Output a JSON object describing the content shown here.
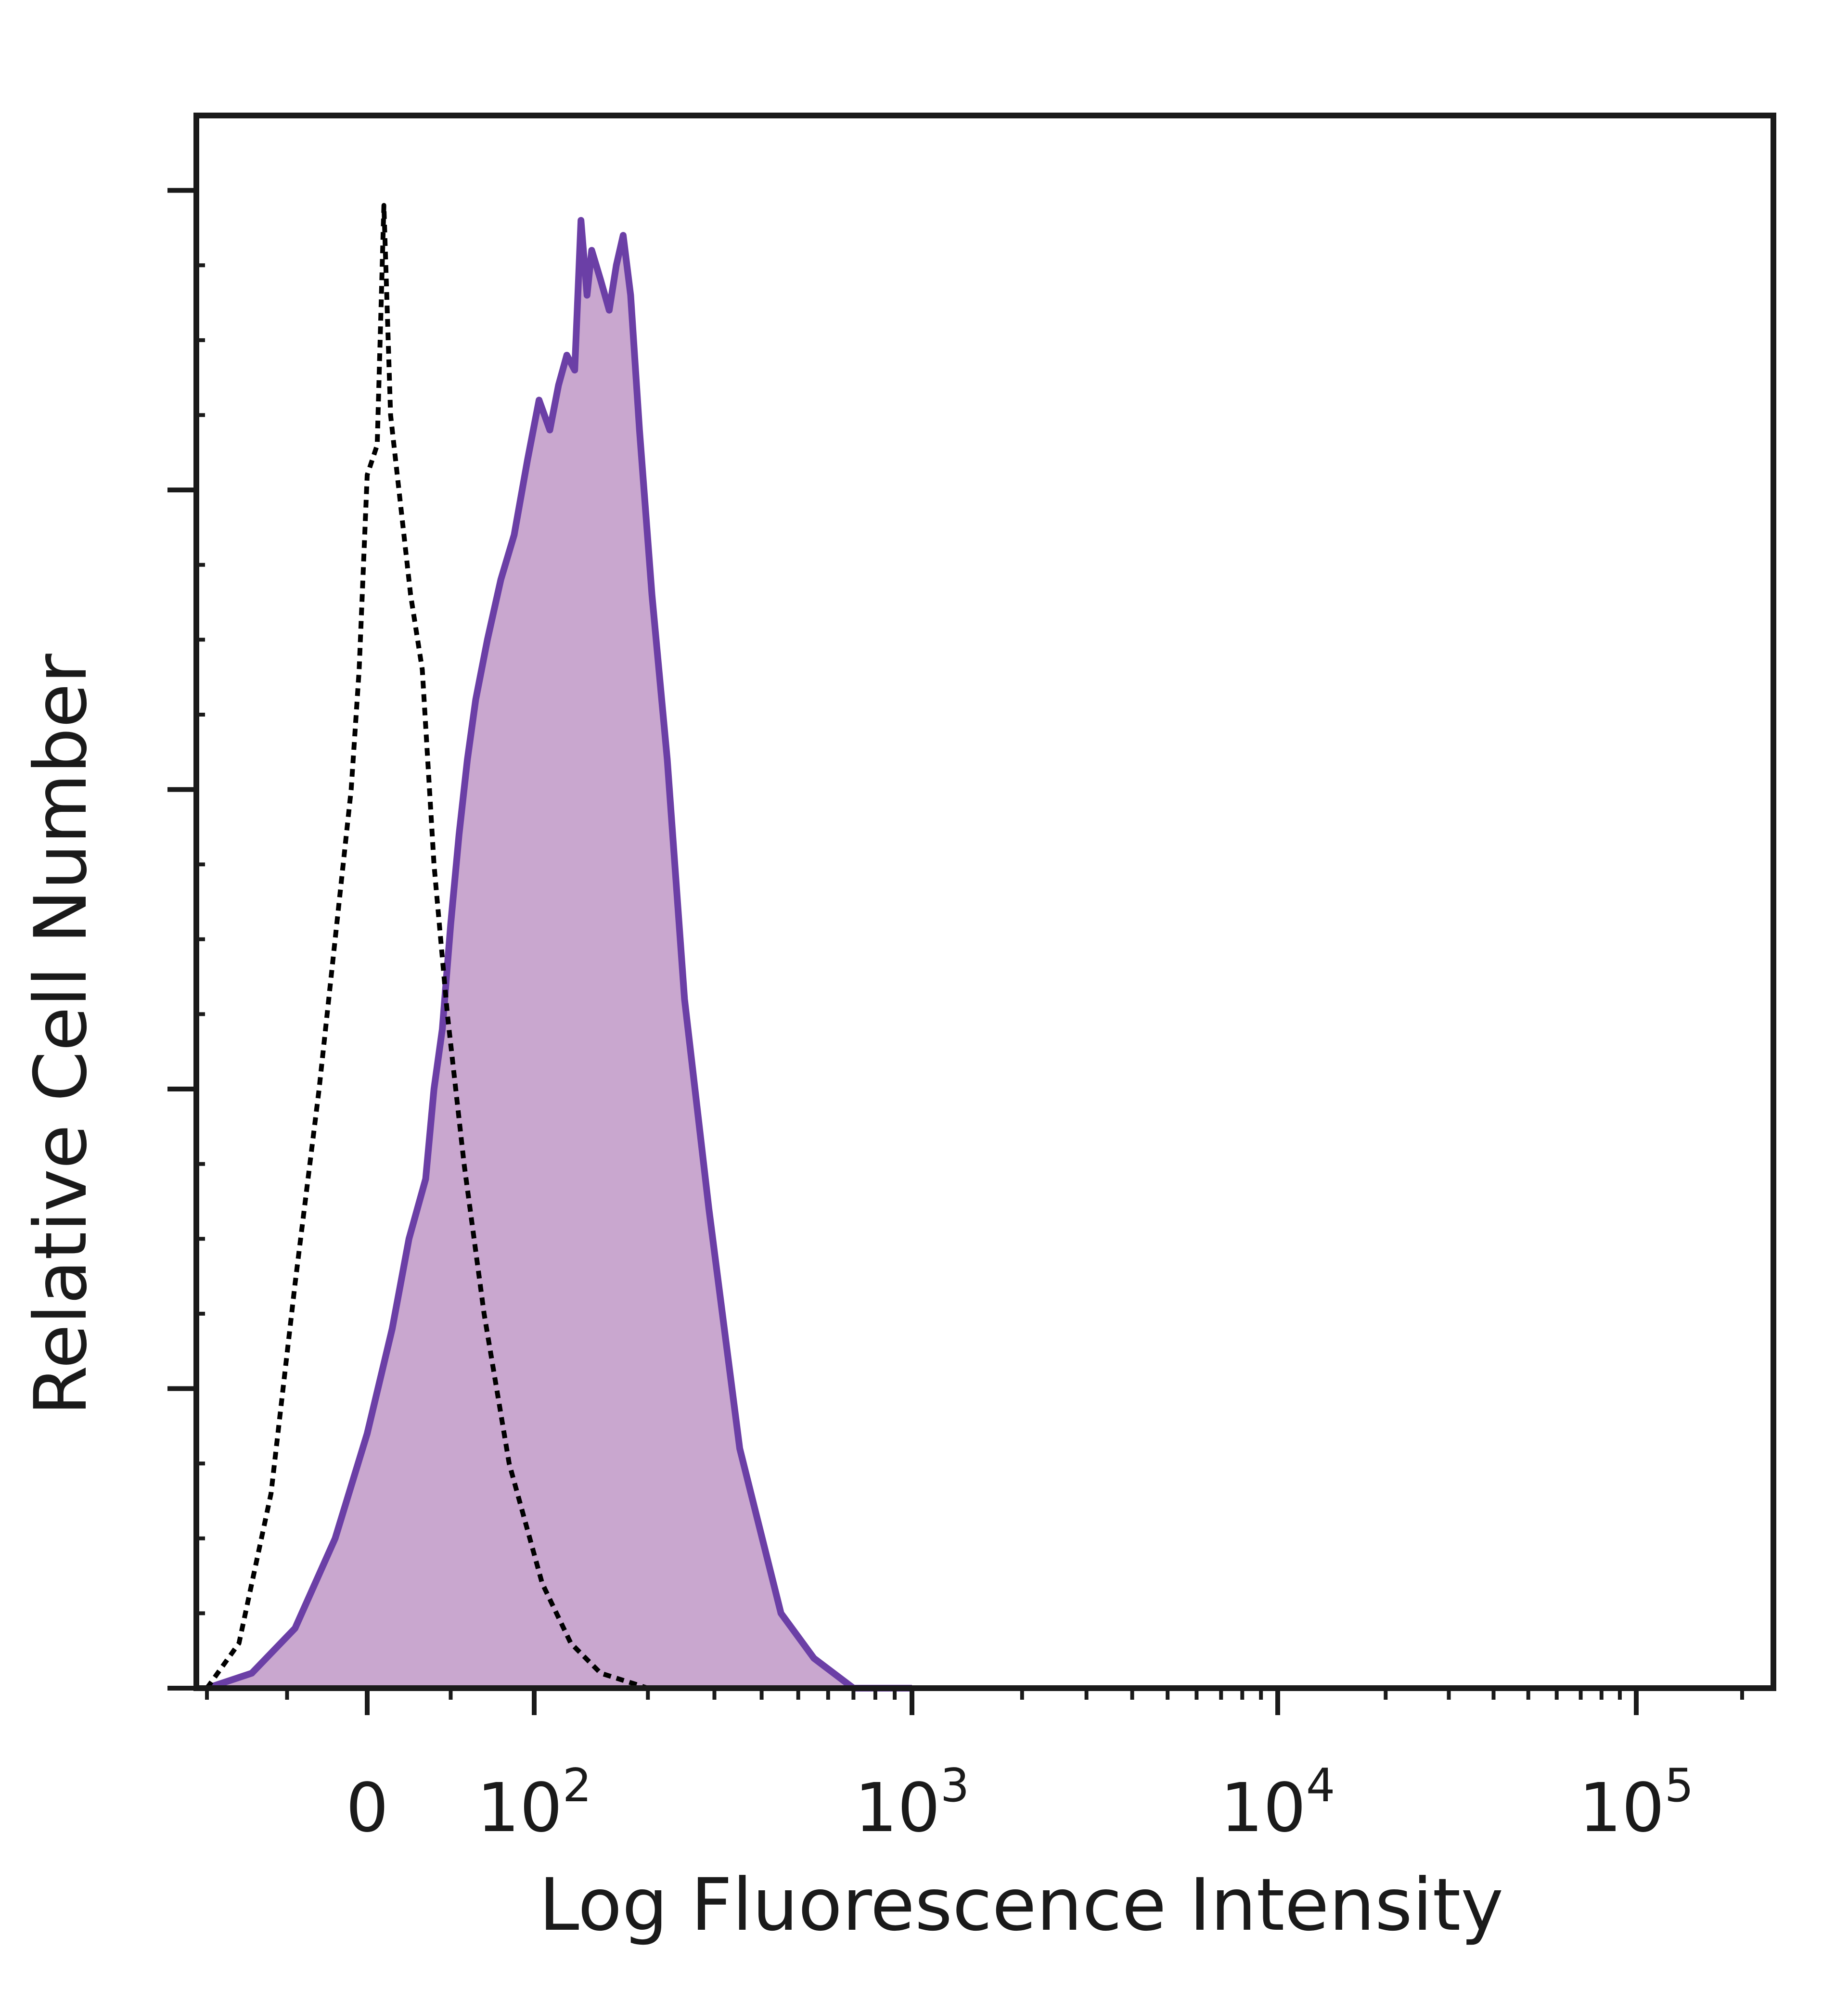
{
  "chart_data": {
    "type": "area",
    "title": "",
    "xlabel": "Log Fluorescence Intensity",
    "ylabel": "Relative Cell Number",
    "x_scale": "biexponential",
    "xlim": [
      -100,
      200000
    ],
    "ylim": [
      0,
      105
    ],
    "grid": false,
    "legend": "none",
    "x_ticks": [
      {
        "value": 0,
        "base": "0",
        "exp": ""
      },
      {
        "value": 100,
        "base": "10",
        "exp": "2"
      },
      {
        "value": 1000,
        "base": "10",
        "exp": "3"
      },
      {
        "value": 10000,
        "base": "10",
        "exp": "4"
      },
      {
        "value": 100000,
        "base": "10",
        "exp": "5"
      }
    ],
    "colors": {
      "stained_fill": "#c9a7cf",
      "stained_line": "#6b3fa6",
      "control_line": "#000000",
      "frame": "#1a1a1a"
    },
    "series": [
      {
        "style": "filled-solid",
        "points": [
          [
            -100,
            0
          ],
          [
            -72,
            1
          ],
          [
            -45,
            4
          ],
          [
            -20,
            10
          ],
          [
            0,
            17
          ],
          [
            15,
            24
          ],
          [
            25,
            30
          ],
          [
            35,
            34
          ],
          [
            40,
            40
          ],
          [
            45,
            44
          ],
          [
            50,
            51
          ],
          [
            55,
            57
          ],
          [
            60,
            62
          ],
          [
            65,
            66
          ],
          [
            72,
            70
          ],
          [
            80,
            74
          ],
          [
            88,
            77
          ],
          [
            96,
            82
          ],
          [
            103,
            86
          ],
          [
            110,
            84
          ],
          [
            116,
            87
          ],
          [
            122,
            89
          ],
          [
            128,
            88
          ],
          [
            133,
            98
          ],
          [
            138,
            93
          ],
          [
            142,
            96
          ],
          [
            150,
            94
          ],
          [
            158,
            92
          ],
          [
            165,
            95
          ],
          [
            172,
            97
          ],
          [
            180,
            93
          ],
          [
            190,
            84
          ],
          [
            205,
            73
          ],
          [
            225,
            62
          ],
          [
            250,
            46
          ],
          [
            290,
            32
          ],
          [
            350,
            16
          ],
          [
            450,
            5
          ],
          [
            550,
            2
          ],
          [
            700,
            0
          ],
          [
            1000,
            0
          ]
        ]
      },
      {
        "style": "dashed",
        "points": [
          [
            -100,
            0
          ],
          [
            -80,
            3
          ],
          [
            -60,
            13
          ],
          [
            -45,
            27
          ],
          [
            -30,
            40
          ],
          [
            -20,
            50
          ],
          [
            -10,
            60
          ],
          [
            -5,
            68
          ],
          [
            0,
            81
          ],
          [
            6,
            83
          ],
          [
            10,
            99
          ],
          [
            14,
            85
          ],
          [
            20,
            79
          ],
          [
            26,
            73
          ],
          [
            33,
            68
          ],
          [
            40,
            55
          ],
          [
            48,
            45
          ],
          [
            58,
            35
          ],
          [
            70,
            25
          ],
          [
            85,
            15
          ],
          [
            105,
            7
          ],
          [
            125,
            3
          ],
          [
            150,
            1
          ],
          [
            200,
            0
          ],
          [
            300,
            0
          ]
        ]
      }
    ]
  }
}
